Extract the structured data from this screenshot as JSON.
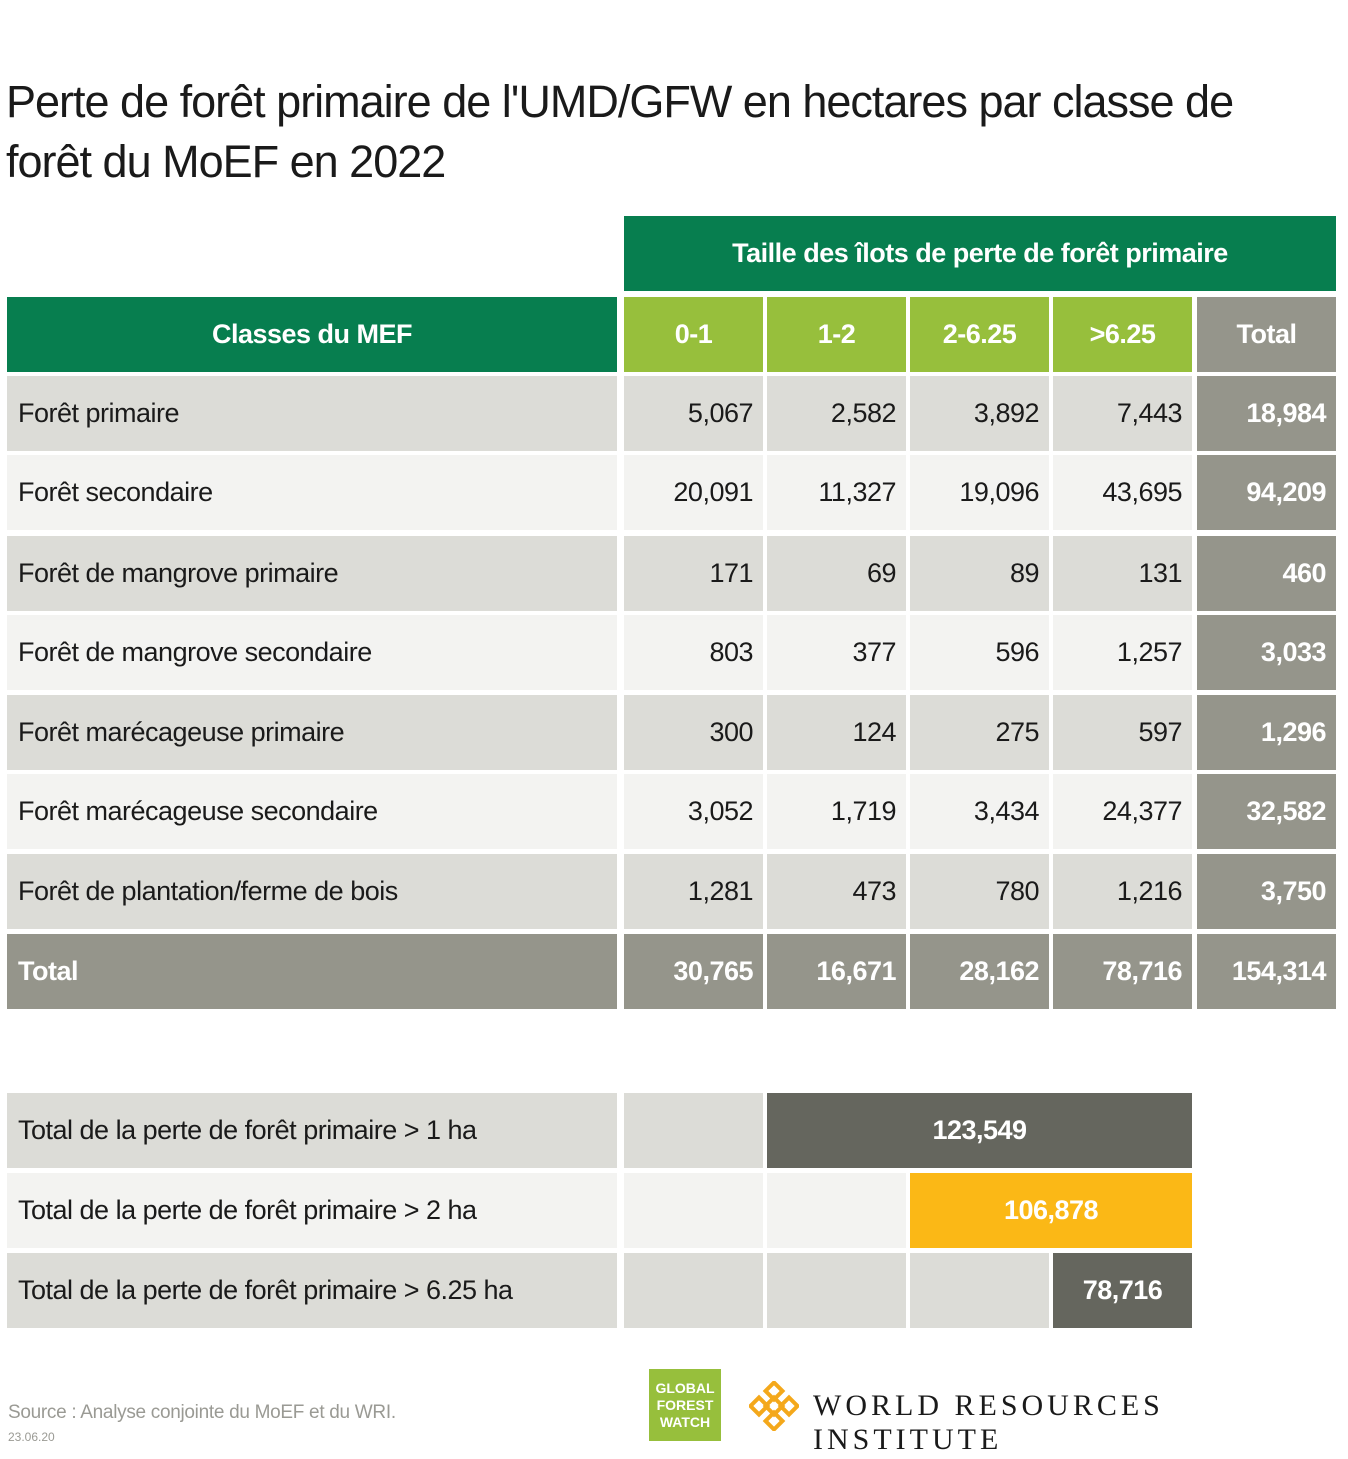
{
  "title": "Perte de forêt primaire de l'UMD/GFW en hectares par classe de forêt du MoEF en 2022",
  "chart_data": {
    "type": "table",
    "group_header": "Taille des îlots de perte de forêt primaire",
    "row_header": "Classes du MEF",
    "columns": [
      "0-1",
      "1-2",
      "2-6.25",
      ">6.25",
      "Total"
    ],
    "rows": [
      {
        "label": "Forêt primaire",
        "values": [
          "5,067",
          "2,582",
          "3,892",
          "7,443",
          "18,984"
        ]
      },
      {
        "label": "Forêt secondaire",
        "values": [
          "20,091",
          "11,327",
          "19,096",
          "43,695",
          "94,209"
        ]
      },
      {
        "label": "Forêt de mangrove primaire",
        "values": [
          "171",
          "69",
          "89",
          "131",
          "460"
        ]
      },
      {
        "label": "Forêt de mangrove secondaire",
        "values": [
          "803",
          "377",
          "596",
          "1,257",
          "3,033"
        ]
      },
      {
        "label": "Forêt marécageuse primaire",
        "values": [
          "300",
          "124",
          "275",
          "597",
          "1,296"
        ]
      },
      {
        "label": "Forêt marécageuse secondaire",
        "values": [
          "3,052",
          "1,719",
          "3,434",
          "24,377",
          "32,582"
        ]
      },
      {
        "label": "Forêt de plantation/ferme de bois",
        "values": [
          "1,281",
          "473",
          "780",
          "1,216",
          "3,750"
        ]
      }
    ],
    "total_row": {
      "label": "Total",
      "values": [
        "30,765",
        "16,671",
        "28,162",
        "78,716",
        "154,314"
      ]
    },
    "summary": [
      {
        "label": "Total de la perte de forêt primaire > 1 ha",
        "value": "123,549",
        "color": "#65665e"
      },
      {
        "label": "Total de la perte de forêt primaire > 2 ha",
        "value": "106,878",
        "color": "#fbb816"
      },
      {
        "label": "Total de la perte de forêt primaire > 6.25 ha",
        "value": "78,716",
        "color": "#65665e"
      }
    ],
    "colors": {
      "header_green": "#077e4f",
      "header_lime": "#97bf3c",
      "total_gray": "#95958b",
      "row_odd": "#dcdcd7",
      "row_even": "#f3f3f1"
    }
  },
  "footer": {
    "source": "Source : Analyse conjointe du MoEF et du WRI.",
    "date": "23.06.20",
    "gfw_logo_lines": [
      "GLOBAL",
      "FOREST",
      "WATCH"
    ],
    "wri_name": "WORLD RESOURCES INSTITUTE"
  }
}
